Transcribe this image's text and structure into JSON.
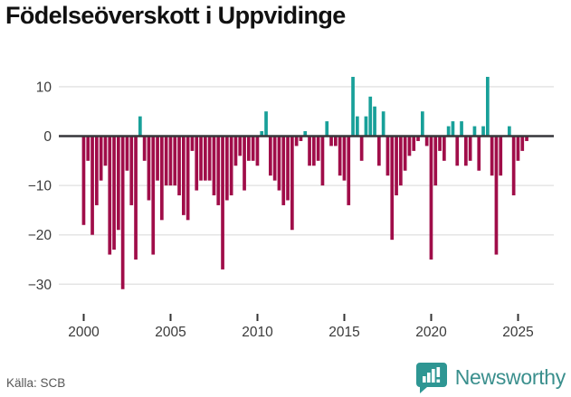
{
  "header": {
    "title": "Födelseöverskott i Uppvidinge"
  },
  "footer": {
    "source": "Källa: SCB",
    "logo_text": "Newsworthy"
  },
  "colors": {
    "positive_bar": "#18a099",
    "negative_bar": "#a00d49",
    "zero_line": "#37373a",
    "gridline": "#e4e4e4",
    "axis_text": "#3a3a3a",
    "title_text": "#111111",
    "source_text": "#565656",
    "logo_teal": "#2e9693"
  },
  "chart_data": {
    "type": "bar",
    "title": "Födelseöverskott i Uppvidinge",
    "xlabel": "",
    "ylabel": "",
    "frequency": "quarterly",
    "period_start": "2000Q1",
    "period_end": "2025Q3",
    "ylim": [
      -36,
      13
    ],
    "grid": "horizontal",
    "legend": "none",
    "yticks": [
      10,
      0,
      -10,
      -20,
      -30
    ],
    "ytick_labels": [
      "10",
      "0",
      "−10",
      "−20",
      "−30"
    ],
    "xticks": [
      2000,
      2005,
      2010,
      2015,
      2020,
      2025
    ],
    "xtick_labels": [
      "2000",
      "2005",
      "2010",
      "2015",
      "2020",
      "2025"
    ],
    "values": [
      -18,
      -5,
      -20,
      -14,
      -9,
      -6,
      -24,
      -23,
      -19,
      -31,
      -7,
      -14,
      -25,
      4,
      -5,
      -13,
      -24,
      -9,
      -17,
      -10,
      -10,
      -10,
      -12,
      -16,
      -17,
      -3,
      -11,
      -9,
      -9,
      -9,
      -12,
      -14,
      -27,
      -13,
      -12,
      -6,
      -4,
      -11,
      -5,
      -5,
      -6,
      1,
      5,
      -8,
      -9,
      -11,
      -14,
      -13,
      -19,
      -2,
      -1,
      1,
      -6,
      -6,
      -5,
      -10,
      3,
      -2,
      -2,
      -8,
      -9,
      -14,
      12,
      4,
      -5,
      4,
      8,
      6,
      -6,
      5,
      -8,
      -21,
      -12,
      -10,
      -7,
      -4,
      -3,
      -1,
      5,
      -2,
      -25,
      -10,
      -3,
      -5,
      2,
      3,
      -6,
      3,
      -6,
      -5,
      2,
      -7,
      2,
      12,
      -8,
      -24,
      -8,
      0,
      2,
      -12,
      -5,
      -3,
      -1
    ]
  }
}
